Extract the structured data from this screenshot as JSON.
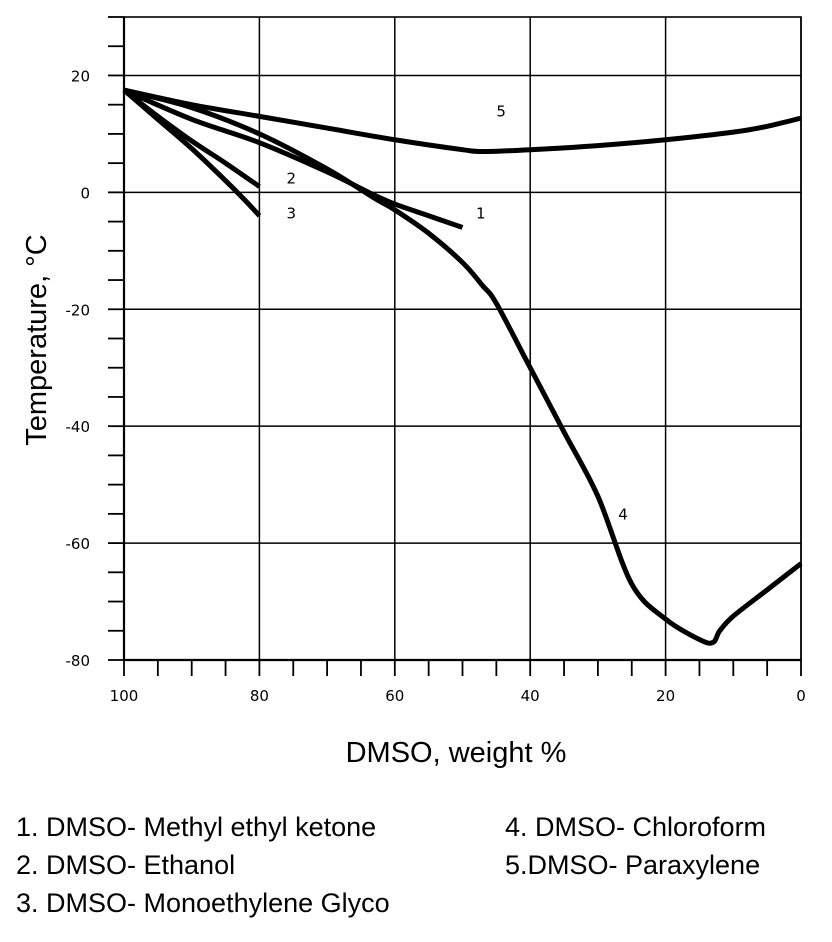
{
  "chart_data": {
    "type": "line",
    "title": "",
    "xlabel": "DMSO, weight %",
    "ylabel": "Temperature, °C",
    "xlim": [
      100,
      0
    ],
    "ylim": [
      -80,
      30
    ],
    "x_ticks": [
      100,
      80,
      60,
      40,
      20,
      0
    ],
    "x_minor_step": 5,
    "y_ticks": [
      20,
      0,
      -20,
      -40,
      -60,
      -80
    ],
    "y_minor_step": 5,
    "grid": true,
    "series": [
      {
        "name": "1",
        "label": "1",
        "label_at": [
          48,
          -4.5
        ],
        "x": [
          100,
          90,
          80,
          70,
          63,
          60,
          55,
          50
        ],
        "y": [
          17.5,
          12.5,
          8.5,
          3.5,
          -0.5,
          -2,
          -4,
          -6
        ]
      },
      {
        "name": "2",
        "label": "2",
        "label_at": [
          76,
          1.5
        ],
        "x": [
          100,
          95,
          90,
          85,
          80
        ],
        "y": [
          17.5,
          13,
          8.8,
          5,
          1
        ]
      },
      {
        "name": "3",
        "label": "3",
        "label_at": [
          76,
          -4.5
        ],
        "x": [
          100,
          95,
          90,
          85,
          82,
          80
        ],
        "y": [
          17.5,
          12.5,
          7.5,
          2,
          -1.5,
          -4
        ]
      },
      {
        "name": "4",
        "label": "4",
        "label_at": [
          27,
          -56
        ],
        "x": [
          100,
          90,
          80,
          70,
          63,
          60,
          55,
          50,
          47,
          45,
          40,
          35,
          30,
          25,
          20,
          15,
          13,
          12,
          10,
          5,
          0
        ],
        "y": [
          17.5,
          14.5,
          10,
          4,
          -1,
          -3,
          -7,
          -12,
          -16,
          -19,
          -30,
          -41,
          -52,
          -67,
          -73,
          -76.5,
          -77,
          -75,
          -72.5,
          -68,
          -63.5
        ]
      },
      {
        "name": "5",
        "label": "5",
        "label_at": [
          45,
          13
        ],
        "x": [
          100,
          90,
          80,
          70,
          60,
          50,
          47,
          40,
          30,
          20,
          10,
          5,
          0
        ],
        "y": [
          17.5,
          15,
          13,
          11,
          9,
          7.3,
          7,
          7.3,
          8,
          9,
          10.3,
          11.3,
          12.7
        ]
      }
    ],
    "legend": [
      "1. DMSO- Methyl ethyl ketone",
      "2. DMSO- Ethanol",
      "3. DMSO- Monoethylene Glyco",
      "4. DMSO- Chloroform",
      "5.DMSO- Paraxylene"
    ],
    "legend_placement": "bottom"
  }
}
